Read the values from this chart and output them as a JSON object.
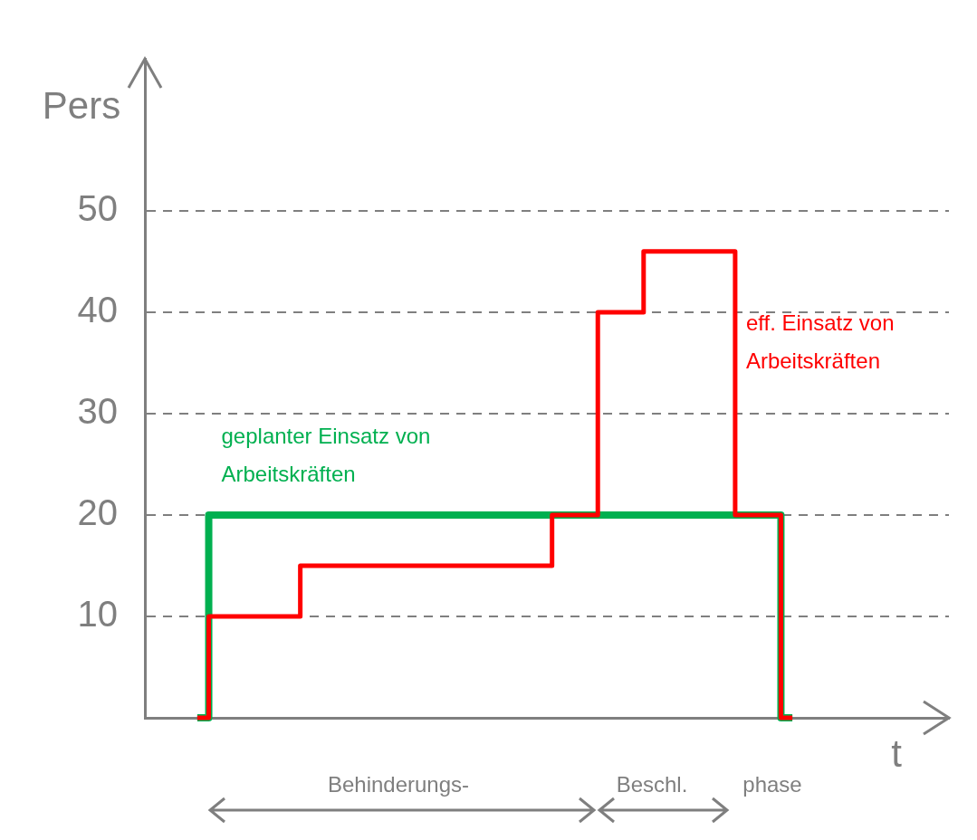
{
  "chart_data": {
    "type": "step",
    "ylabel": "Pers",
    "xlabel": "t",
    "categories": [
      null,
      null,
      null,
      null,
      null,
      null,
      null,
      null,
      null,
      null,
      null,
      null,
      null,
      null,
      null,
      null,
      null,
      null,
      null,
      null,
      null,
      null,
      null,
      null,
      null,
      null,
      null
    ],
    "series": [
      {
        "name": "geplanter Einsatz von Arbeitskräften",
        "color": "#00b050",
        "values": [
          0,
          20,
          20,
          20,
          20,
          20,
          20,
          20,
          20,
          20,
          20,
          20,
          20,
          20,
          20,
          20,
          20,
          20,
          20,
          20,
          20,
          20,
          20,
          20,
          20,
          20,
          0
        ]
      },
      {
        "name": "eff. Einsatz von Arbeitskräften",
        "color": "#ff0000",
        "values": [
          0,
          10,
          10,
          10,
          10,
          15,
          15,
          15,
          15,
          15,
          15,
          15,
          15,
          15,
          15,
          15,
          20,
          20,
          40,
          40,
          46,
          46,
          46,
          46,
          20,
          20,
          0
        ]
      }
    ],
    "ylim": [
      0,
      65
    ],
    "yticks": [
      10,
      20,
      30,
      40,
      50
    ],
    "grid": "y",
    "line_style": "solid",
    "marker": "none",
    "legend": false,
    "tick_labels": "y",
    "annotations": [
      "Behinderungs-",
      "Beschl.",
      "phase"
    ]
  }
}
